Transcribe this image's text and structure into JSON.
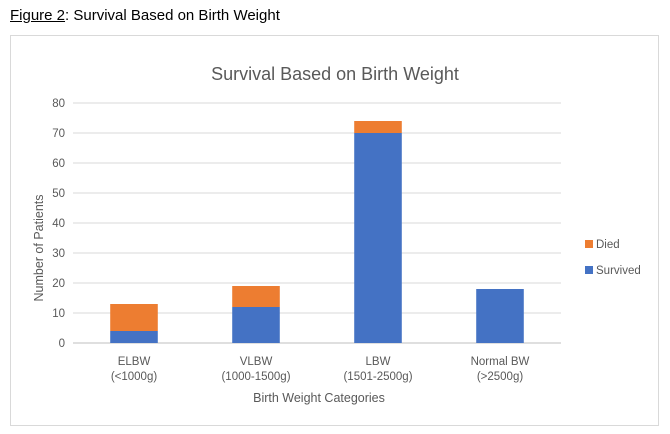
{
  "figure_caption": {
    "label": "Figure 2",
    "text": ": Survival Based on Birth Weight"
  },
  "chart_data": {
    "type": "bar",
    "stacked": true,
    "title": "Survival Based on Birth Weight",
    "xlabel": "Birth Weight Categories",
    "ylabel": "Number of Patients",
    "ylim": [
      0,
      80
    ],
    "yticks": [
      0,
      10,
      20,
      30,
      40,
      50,
      60,
      70,
      80
    ],
    "grid": true,
    "legend_position": "right",
    "categories": [
      [
        "ELBW",
        "(<1000g)"
      ],
      [
        "VLBW",
        "(1000-1500g)"
      ],
      [
        "LBW",
        "(1501-2500g)"
      ],
      [
        "Normal BW",
        "(>2500g)"
      ]
    ],
    "series": [
      {
        "name": "Survived",
        "color": "#4472C4",
        "values": [
          4,
          12,
          70,
          18
        ]
      },
      {
        "name": "Died",
        "color": "#ED7D31",
        "values": [
          9,
          7,
          4,
          0
        ]
      }
    ],
    "legend_order": [
      "Died",
      "Survived"
    ]
  }
}
